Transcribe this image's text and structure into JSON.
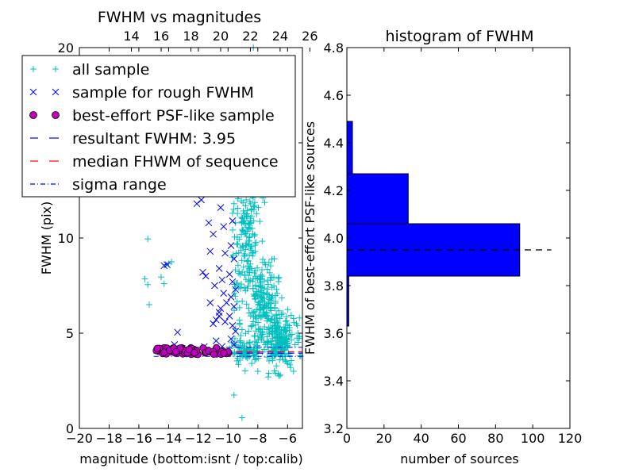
{
  "colors": {
    "all_sample": "#00bfbf",
    "rough_sample": "#0000ff",
    "psf_sample_face": "#bf00bf",
    "resultant_line": "#0000ff",
    "median_line": "#ff0000",
    "sigma_line": "#0000ff",
    "hist_bar": "#0000ff",
    "hist_dash": "#000000"
  },
  "chart_data": [
    {
      "type": "scatter",
      "title": "FWHM vs magnitudes",
      "xlabel": "magnitude (bottom:isnt / top:calib)",
      "ylabel": "FWHM (pix)",
      "xlim": [
        -20,
        -5
      ],
      "ylim": [
        0,
        20
      ],
      "x_ticks": [
        -20,
        -18,
        -16,
        -14,
        -12,
        -10,
        -8,
        -6
      ],
      "x_tick_labels": [
        "−20",
        "−18",
        "−16",
        "−14",
        "−12",
        "−10",
        "−8",
        "−6"
      ],
      "y_ticks": [
        0,
        5,
        10,
        15,
        20
      ],
      "y_tick_labels": [
        "0",
        "5",
        "10",
        "15",
        "20"
      ],
      "top_axis": {
        "offset": 30.5,
        "ticks": [
          14,
          16,
          18,
          20,
          22,
          24,
          26
        ],
        "tick_labels": [
          "14",
          "16",
          "18",
          "20",
          "22",
          "24",
          "26"
        ]
      },
      "legend": {
        "placement": "upper-left",
        "entries": [
          "all sample",
          "sample for rough FWHM",
          "best-effort PSF-like sample",
          "resultant FWHM: 3.95",
          "median FHWM of sequence",
          "sigma range"
        ]
      },
      "lines": {
        "resultant_fwhm": 3.95,
        "median_fwhm": 4.02,
        "sigma_low": 3.78,
        "sigma_high": 4.26,
        "x_range": [
          -15,
          -5
        ]
      },
      "series": [
        {
          "name": "all sample",
          "marker": "plus",
          "points": [
            [
              -15.4,
              9.95
            ],
            [
              -15.6,
              7.85
            ],
            [
              -15.4,
              7.55
            ],
            [
              -15.3,
              6.5
            ],
            [
              -14.5,
              7.95
            ],
            [
              -14.2,
              8.6
            ],
            [
              -14.0,
              8.65
            ],
            [
              -13.8,
              8.75
            ],
            [
              -14.3,
              7.6
            ],
            [
              -9.6,
              1.75
            ],
            [
              -8.3,
              20.0
            ],
            [
              -8.2,
              19.0
            ],
            [
              -7.9,
              18.2
            ],
            [
              -8.1,
              16.9
            ],
            [
              -7.6,
              15.0
            ],
            [
              -8.7,
              15.5
            ],
            [
              -9.5,
              12.5
            ],
            [
              -9.6,
              11.8
            ],
            [
              -9.7,
              11.3
            ],
            [
              -9.5,
              10.8
            ],
            [
              -6.3,
              3.6
            ],
            [
              -6.0,
              3.4
            ],
            [
              -5.8,
              3.2
            ],
            [
              -5.6,
              3.0
            ],
            [
              -6.8,
              2.9
            ],
            [
              -7.3,
              2.7
            ],
            [
              -8.0,
              3.0
            ],
            [
              -5.5,
              4.4
            ],
            [
              -5.3,
              5.0
            ],
            [
              -5.4,
              5.5
            ],
            [
              -5.2,
              5.8
            ]
          ],
          "clusters": [
            {
              "x_mean": -8.6,
              "x_sd": 0.4,
              "y_mean": 10.0,
              "y_sd": 1.6,
              "count": 130
            },
            {
              "x_mean": -7.6,
              "x_sd": 0.5,
              "y_mean": 6.5,
              "y_sd": 1.2,
              "count": 180
            },
            {
              "x_mean": -6.6,
              "x_sd": 0.55,
              "y_mean": 4.6,
              "y_sd": 0.7,
              "count": 190
            },
            {
              "x_mean": -9.2,
              "x_sd": 0.25,
              "y_mean": 8.0,
              "y_sd": 2.8,
              "count": 60
            },
            {
              "x_mean": -8.8,
              "x_sd": 0.5,
              "y_mean": 4.0,
              "y_sd": 0.25,
              "count": 70
            },
            {
              "x_mean": -8.4,
              "x_sd": 0.35,
              "y_mean": 14.0,
              "y_sd": 1.6,
              "count": 45
            }
          ]
        },
        {
          "name": "sample for rough FWHM",
          "marker": "x",
          "points": [
            [
              -13.4,
              5.05
            ],
            [
              -14.3,
              8.55
            ],
            [
              -14.1,
              8.6
            ],
            [
              -13.6,
              4.4
            ],
            [
              -12.6,
              3.9
            ],
            [
              -11.6,
              4.3
            ],
            [
              -11.8,
              12.0
            ],
            [
              -12.1,
              11.8
            ],
            [
              -11.3,
              10.8
            ],
            [
              -11.0,
              10.2
            ],
            [
              -11.2,
              9.3
            ],
            [
              -11.7,
              8.2
            ],
            [
              -11.5,
              8.0
            ],
            [
              -10.9,
              7.5
            ],
            [
              -11.2,
              6.6
            ],
            [
              -10.6,
              6.1
            ],
            [
              -10.8,
              5.7
            ],
            [
              -11.0,
              5.5
            ],
            [
              -10.4,
              14.2
            ],
            [
              -10.2,
              13.1
            ],
            [
              -10.1,
              12.4
            ],
            [
              -10.5,
              11.6
            ],
            [
              -10.3,
              10.6
            ],
            [
              -10.2,
              9.2
            ],
            [
              -10.6,
              8.4
            ],
            [
              -10.4,
              7.8
            ],
            [
              -10.3,
              7.1
            ],
            [
              -10.1,
              6.6
            ],
            [
              -10.5,
              6.3
            ],
            [
              -10.6,
              5.9
            ],
            [
              -10.2,
              5.6
            ],
            [
              -10.0,
              14.8
            ],
            [
              -9.8,
              12.9
            ],
            [
              -9.7,
              10.9
            ],
            [
              -9.8,
              9.6
            ],
            [
              -9.6,
              8.9
            ],
            [
              -9.9,
              8.1
            ],
            [
              -9.7,
              7.7
            ],
            [
              -9.5,
              7.3
            ],
            [
              -9.8,
              6.9
            ],
            [
              -9.6,
              6.4
            ],
            [
              -9.9,
              5.9
            ],
            [
              -9.7,
              5.4
            ],
            [
              -9.5,
              5.1
            ],
            [
              -9.8,
              4.7
            ],
            [
              -9.6,
              4.4
            ],
            [
              -10.8,
              4.6
            ],
            [
              -10.4,
              4.3
            ],
            [
              -12.4,
              4.15
            ],
            [
              -13.1,
              4.2
            ]
          ]
        },
        {
          "name": "best-effort PSF-like sample",
          "marker": "circle",
          "x_range": [
            -14.9,
            -9.9
          ],
          "y_range": [
            3.88,
            4.24
          ],
          "count": 70
        }
      ]
    },
    {
      "type": "bar",
      "orientation": "horizontal",
      "title": "histogram of FWHM",
      "xlabel": "number of sources",
      "ylabel": "FWHM of best-effort PSF-like sources",
      "xlim": [
        0,
        120
      ],
      "ylim": [
        3.2,
        4.8
      ],
      "x_ticks": [
        0,
        20,
        40,
        60,
        80,
        100,
        120
      ],
      "x_tick_labels": [
        "0",
        "20",
        "40",
        "60",
        "80",
        "100",
        "120"
      ],
      "y_ticks": [
        3.2,
        3.4,
        3.6,
        3.8,
        4.0,
        4.2,
        4.4,
        4.6,
        4.8
      ],
      "y_tick_labels": [
        "3.2",
        "3.4",
        "3.6",
        "3.8",
        "4.0",
        "4.2",
        "4.4",
        "4.6",
        "4.8"
      ],
      "bins": [
        {
          "low": 3.63,
          "high": 3.84,
          "count": 1
        },
        {
          "low": 3.84,
          "high": 4.06,
          "count": 93
        },
        {
          "low": 4.06,
          "high": 4.27,
          "count": 33
        },
        {
          "low": 4.27,
          "high": 4.49,
          "count": 3
        },
        {
          "low": 4.49,
          "high": 4.7,
          "count": 0
        }
      ],
      "dash_line": {
        "value": 3.95,
        "x_range": [
          0,
          110
        ]
      }
    }
  ]
}
